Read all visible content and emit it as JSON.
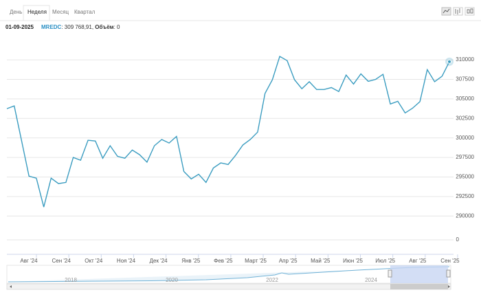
{
  "tabs": [
    "День",
    "Неделя",
    "Месяц",
    "Квартал"
  ],
  "active_tab": 1,
  "header": {
    "date": "01-09-2025",
    "ticker": "MREDC",
    "price_text": ": 309 768,91,",
    "volume_label": "Объём",
    "volume_text": ": 0"
  },
  "chart_data": {
    "type": "line",
    "series": [
      {
        "name": "MREDC",
        "color": "#3a9cc0",
        "values": [
          303750,
          304100,
          299600,
          295100,
          294850,
          291150,
          294850,
          294150,
          294300,
          297500,
          297150,
          299700,
          299600,
          297400,
          299000,
          297650,
          297400,
          298450,
          297850,
          296900,
          299000,
          299800,
          299350,
          300200,
          295700,
          294750,
          295350,
          294300,
          296150,
          296800,
          296600,
          297750,
          299100,
          299800,
          300750,
          305700,
          307450,
          310450,
          309900,
          307450,
          306300,
          307200,
          306200,
          306200,
          306450,
          305950,
          308050,
          306900,
          308200,
          307250,
          307500,
          308150,
          304350,
          304700,
          303200,
          303800,
          304650,
          308750,
          307200,
          307900,
          309768.91
        ]
      }
    ],
    "x_labels": [
      "Авг '24",
      "Сен '24",
      "Окт '24",
      "Ноя '24",
      "Дек '24",
      "Янв '25",
      "Фев '25",
      "Март '25",
      "Апр '25",
      "Май '25",
      "Июн '25",
      "Июл '25",
      "Авг '25",
      "Сен '25"
    ],
    "ylim": [
      288000,
      313000
    ],
    "yticks": [
      290000,
      292500,
      295000,
      297500,
      300000,
      302500,
      305000,
      307500,
      310000
    ],
    "yticks_below_break": [
      0
    ],
    "grid": true,
    "navigator_labels": [
      "2018",
      "2020",
      "2022",
      "2024"
    ]
  }
}
